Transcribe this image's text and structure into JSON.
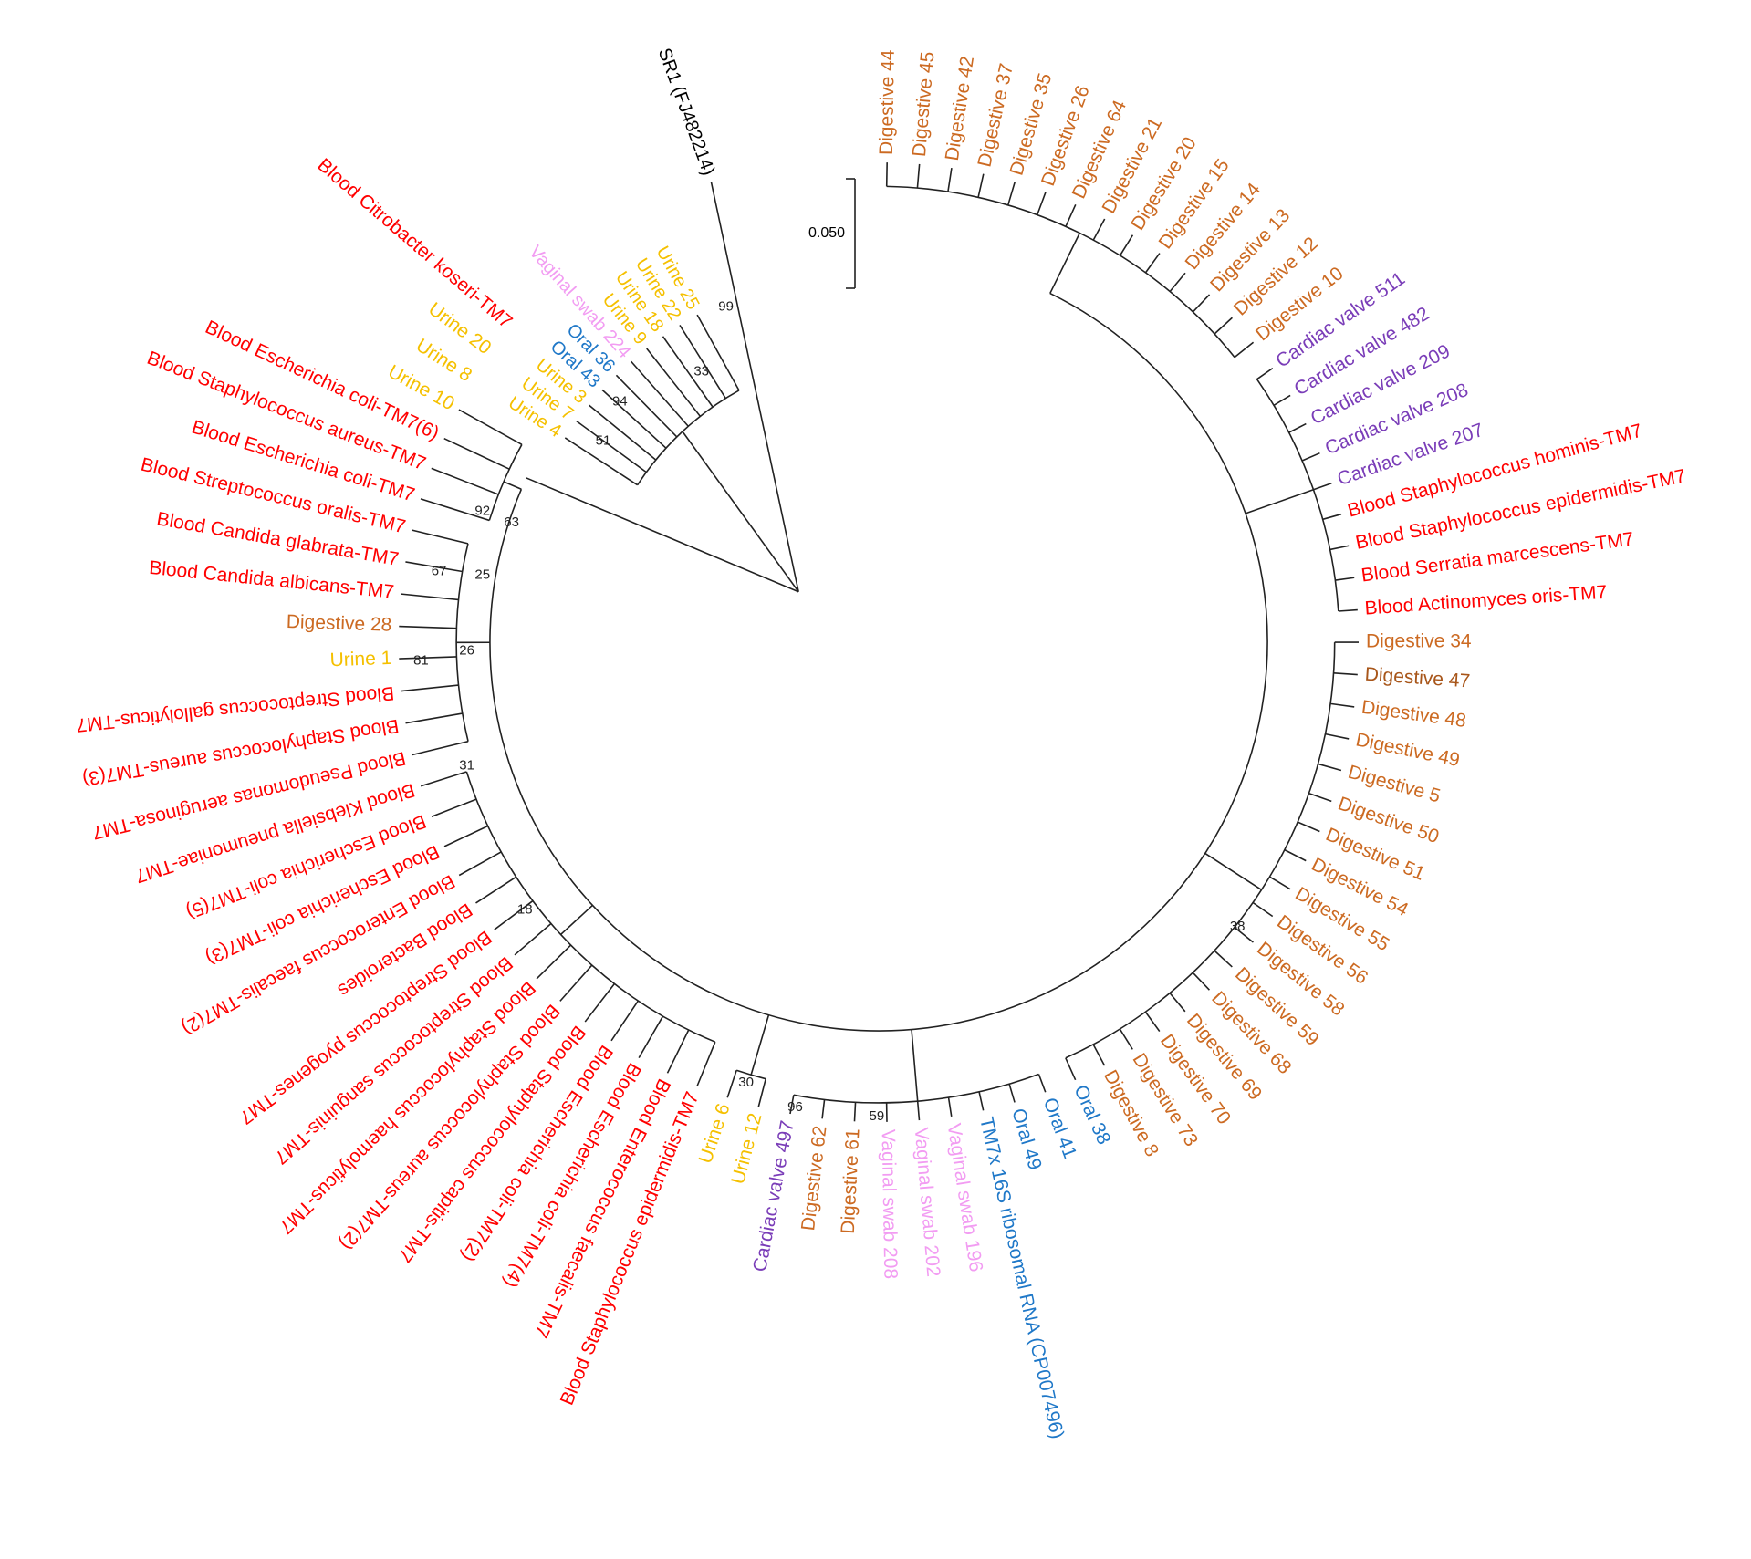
{
  "tree": {
    "outgroup": "SR1 (FJ482214)",
    "scale_bar": "0.050",
    "leaves": [
      {
        "label": "Digestive 44",
        "color": "#cc6a22"
      },
      {
        "label": "Digestive 45",
        "color": "#cc6a22"
      },
      {
        "label": "Digestive 42",
        "color": "#cc6a22"
      },
      {
        "label": "Digestive 37",
        "color": "#cc6a22"
      },
      {
        "label": "Digestive 35",
        "color": "#cc6a22"
      },
      {
        "label": "Digestive 26",
        "color": "#cc6a22"
      },
      {
        "label": "Digestive 64",
        "color": "#cc6a22"
      },
      {
        "label": "Digestive 21",
        "color": "#cc6a22"
      },
      {
        "label": "Digestive 20",
        "color": "#cc6a22"
      },
      {
        "label": "Digestive 15",
        "color": "#cc6a22"
      },
      {
        "label": "Digestive 14",
        "color": "#cc6a22"
      },
      {
        "label": "Digestive 13",
        "color": "#cc6a22"
      },
      {
        "label": "Digestive 12",
        "color": "#cc6a22"
      },
      {
        "label": "Digestive 10",
        "color": "#cc6a22"
      },
      {
        "label": "Cardiac valve 511",
        "color": "#7a3db8"
      },
      {
        "label": "Cardiac valve 482",
        "color": "#7a3db8"
      },
      {
        "label": "Cardiac valve 209",
        "color": "#7a3db8"
      },
      {
        "label": "Cardiac valve 208",
        "color": "#7a3db8"
      },
      {
        "label": "Cardiac valve 207",
        "color": "#7a3db8"
      },
      {
        "label": "Blood Staphylococcus hominis-TM7",
        "color": "#ff0000"
      },
      {
        "label": "Blood Staphylococcus epidermidis-TM7",
        "color": "#ff0000"
      },
      {
        "label": "Blood Serratia marcescens-TM7",
        "color": "#ff0000"
      },
      {
        "label": "Blood Actinomyces oris-TM7",
        "color": "#ff0000"
      },
      {
        "label": "Digestive 34",
        "color": "#cc6a22"
      },
      {
        "label": "Digestive 47",
        "color": "#a8561a"
      },
      {
        "label": "Digestive 48",
        "color": "#cc6a22"
      },
      {
        "label": "Digestive 49",
        "color": "#cc6a22"
      },
      {
        "label": "Digestive 5",
        "color": "#cc6a22"
      },
      {
        "label": "Digestive 50",
        "color": "#cc6a22"
      },
      {
        "label": "Digestive 51",
        "color": "#cc6a22"
      },
      {
        "label": "Digestive 54",
        "color": "#cc6a22"
      },
      {
        "label": "Digestive 55",
        "color": "#cc6a22"
      },
      {
        "label": "Digestive 56",
        "color": "#cc6a22"
      },
      {
        "label": "Digestive 58",
        "color": "#cc6a22"
      },
      {
        "label": "Digestive 59",
        "color": "#cc6a22"
      },
      {
        "label": "Digestive 68",
        "color": "#cc6a22"
      },
      {
        "label": "Digestive 69",
        "color": "#cc6a22"
      },
      {
        "label": "Digestive 70",
        "color": "#cc6a22"
      },
      {
        "label": "Digestive 73",
        "color": "#cc6a22"
      },
      {
        "label": "Digestive 8",
        "color": "#cc6a22"
      },
      {
        "label": "Oral 38",
        "color": "#1f78c8"
      },
      {
        "label": "Oral 41",
        "color": "#1f78c8"
      },
      {
        "label": "Oral 49",
        "color": "#1f78c8"
      },
      {
        "label": "TM7x 16S ribosomal RNA (CP007496)",
        "color": "#1f78c8"
      },
      {
        "label": "Vaginal swab 196",
        "color": "#f29cf2"
      },
      {
        "label": "Vaginal swab 202",
        "color": "#f29cf2"
      },
      {
        "label": "Vaginal swab 208",
        "color": "#f29cf2"
      },
      {
        "label": "Digestive 61",
        "color": "#cc6a22"
      },
      {
        "label": "Digestive 62",
        "color": "#cc6a22"
      },
      {
        "label": "Cardiac valve 497",
        "color": "#7a3db8"
      },
      {
        "label": "Urine 12",
        "color": "#f5c000"
      },
      {
        "label": "Urine 6",
        "color": "#f5c000"
      },
      {
        "label": "Blood Staphylococcus epidermidis-TM7",
        "color": "#ff0000"
      },
      {
        "label": "Blood Enterococcus faecalis-TM7",
        "color": "#ff0000"
      },
      {
        "label": "Blood Escherichia coli-TM7(4)",
        "color": "#ff0000"
      },
      {
        "label": "Blood Escherichia coli-TM7(2)",
        "color": "#ff0000"
      },
      {
        "label": "Blood Staphylococcus capitis-TM7",
        "color": "#ff0000"
      },
      {
        "label": "Blood Staphylococcus aureus-TM7(2)",
        "color": "#ff0000"
      },
      {
        "label": "Blood Staphylococcus haemolyticus-TM7",
        "color": "#ff0000"
      },
      {
        "label": "Blood Streptococcus sanguinis-TM7",
        "color": "#ff0000"
      },
      {
        "label": "Blood Streptococcus pyogenes-TM7",
        "color": "#ff0000"
      },
      {
        "label": "Blood Bacteroides",
        "color": "#ff0000"
      },
      {
        "label": "Blood Enterococcus faecalis-TM7(2)",
        "color": "#ff0000"
      },
      {
        "label": "Blood Escherichia coli-TM7(3)",
        "color": "#ff0000"
      },
      {
        "label": "Blood Escherichia coli-TM7(5)",
        "color": "#ff0000"
      },
      {
        "label": "Blood Klebsiella pneumoniae-TM7",
        "color": "#ff0000"
      },
      {
        "label": "Blood Pseudomonas aeruginosa-TM7",
        "color": "#ff0000"
      },
      {
        "label": "Blood Staphylococcus aureus-TM7(3)",
        "color": "#ff0000"
      },
      {
        "label": "Blood Streptococcus gallolyticus-TM7",
        "color": "#ff0000"
      },
      {
        "label": "Urine 1",
        "color": "#f5c000"
      },
      {
        "label": "Digestive 28",
        "color": "#cc6a22"
      },
      {
        "label": "Blood Candida albicans-TM7",
        "color": "#ff0000"
      },
      {
        "label": "Blood Candida glabrata-TM7",
        "color": "#ff0000"
      },
      {
        "label": "Blood Streptococcus oralis-TM7",
        "color": "#ff0000"
      },
      {
        "label": "Blood Escherichia coli-TM7",
        "color": "#ff0000"
      },
      {
        "label": "Blood Staphylococcus aureus-TM7",
        "color": "#ff0000"
      },
      {
        "label": "Blood Escherichia coli-TM7(6)",
        "color": "#ff0000"
      },
      {
        "label": "Urine 10",
        "color": "#f5c000"
      },
      {
        "label": "Urine 8",
        "color": "#f5c000"
      },
      {
        "label": "Urine 20",
        "color": "#f5c000"
      },
      {
        "label": "Blood Citrobacter koseri-TM7",
        "color": "#ff0000"
      }
    ],
    "inner_leaves": [
      {
        "label": "Urine 25",
        "color": "#f5c000"
      },
      {
        "label": "Urine 22",
        "color": "#f5c000"
      },
      {
        "label": "Urine 18",
        "color": "#f5c000"
      },
      {
        "label": "Urine 9",
        "color": "#f5c000"
      },
      {
        "label": "Vaginal swab 224",
        "color": "#f29cf2"
      },
      {
        "label": "Oral 36",
        "color": "#1f78c8"
      },
      {
        "label": "Oral 43",
        "color": "#1f78c8"
      },
      {
        "label": "Urine 3",
        "color": "#f5c000"
      },
      {
        "label": "Urine 7",
        "color": "#f5c000"
      },
      {
        "label": "Urine 4",
        "color": "#f5c000"
      }
    ],
    "bootstrap": [
      99,
      33,
      94,
      51,
      92,
      63,
      67,
      25,
      26,
      81,
      31,
      18,
      38,
      30,
      96,
      59
    ]
  }
}
